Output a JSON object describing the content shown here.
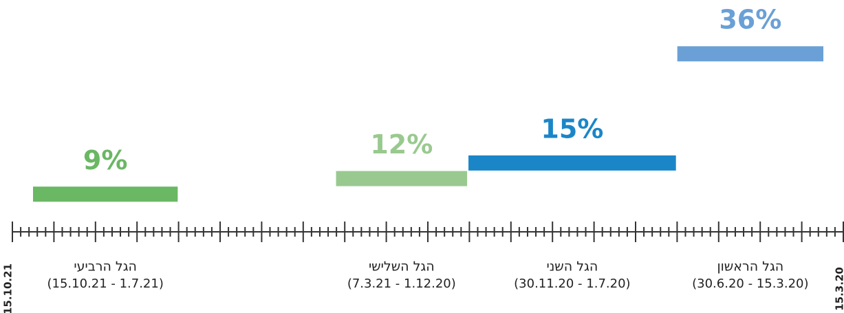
{
  "chart_data": {
    "type": "bar",
    "categories": [
      "הגל הראשון",
      "הגל השני",
      "הגל השלישי",
      "הגל הרביעי"
    ],
    "ranges": [
      "(30.6.20 - 15.3.20)",
      "(30.11.20 - 1.7.20)",
      "(7.3.21 - 1.12.20)",
      "(15.10.21 - 1.7.21)"
    ],
    "values": [
      36,
      15,
      12,
      9
    ],
    "value_labels": [
      "36%",
      "15%",
      "12%",
      "9%"
    ],
    "colors": [
      "#6aa0d6",
      "#1a86c8",
      "#99c98f",
      "#6ab764"
    ],
    "xlim": [
      "15.3.20",
      "15.10.21"
    ],
    "x_reversed": true,
    "ylim": [
      0.3,
      44.9
    ]
  }
}
